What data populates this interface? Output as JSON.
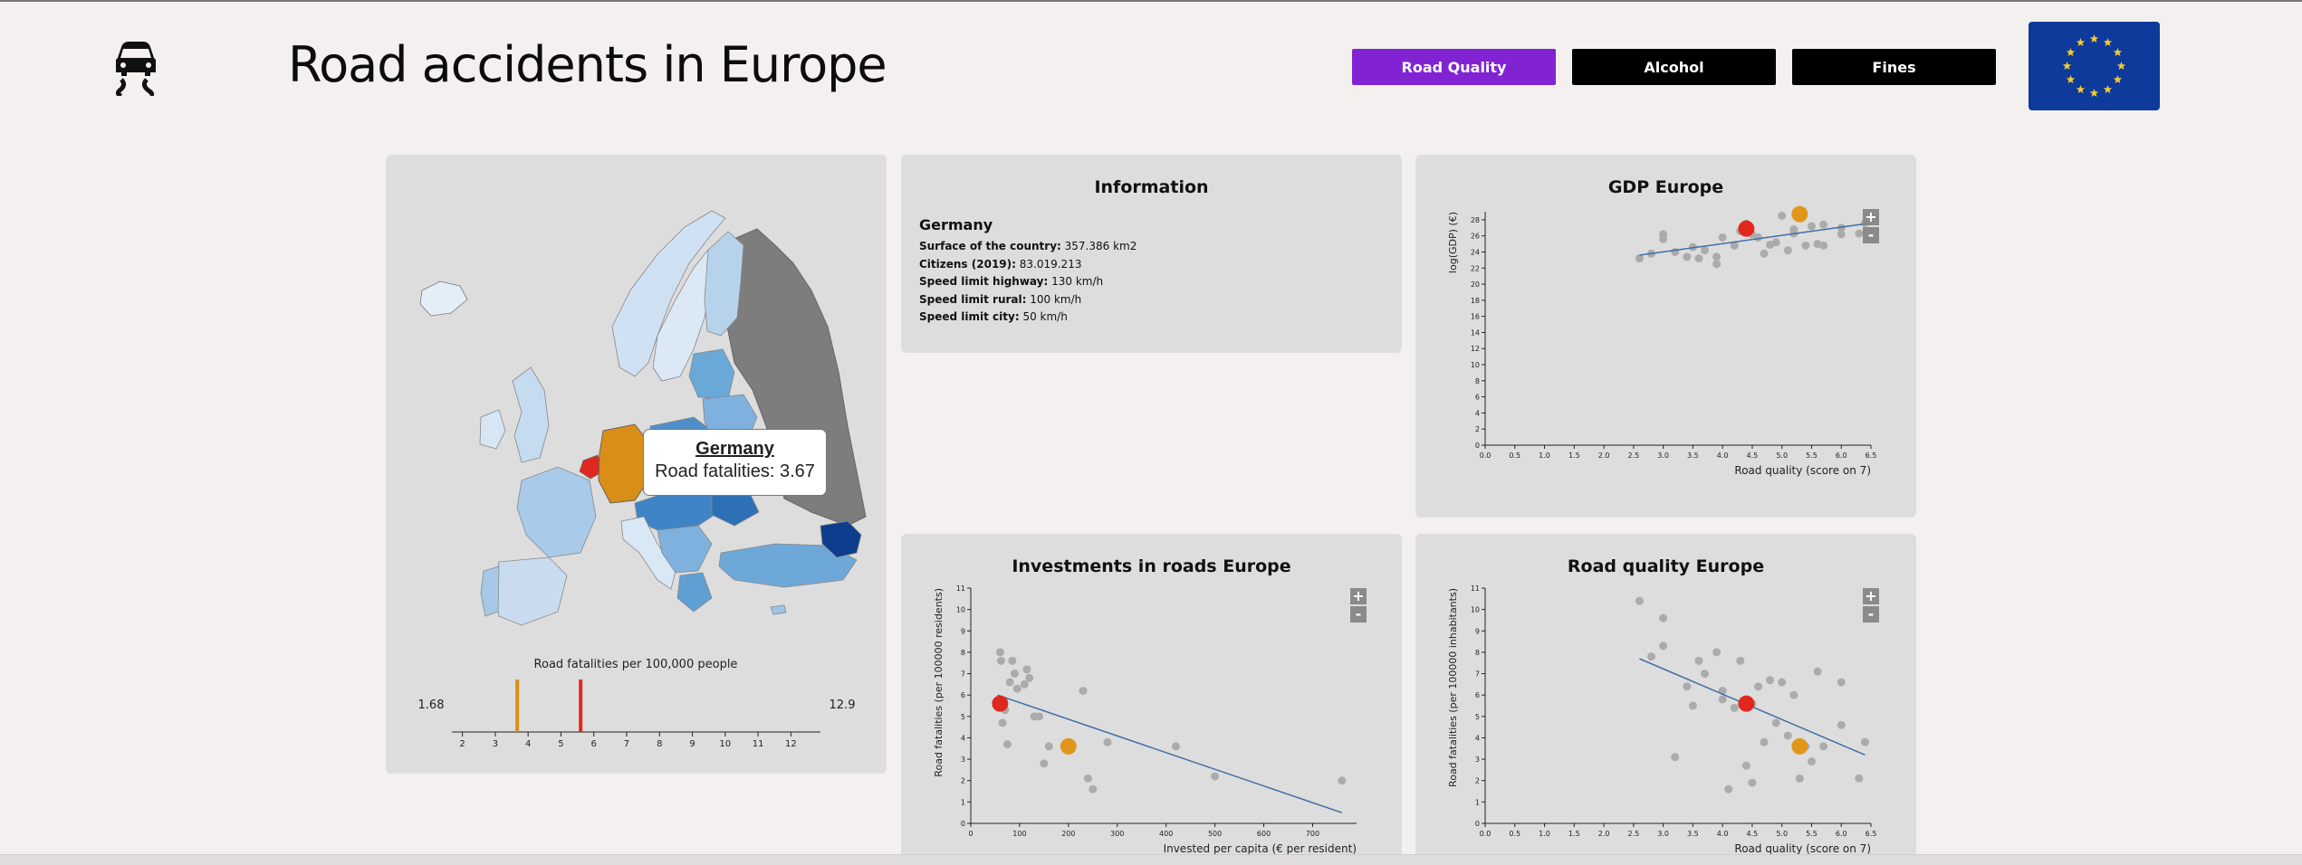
{
  "header": {
    "title": "Road accidents in Europe",
    "logo_icon": "car-skid-icon",
    "nav": [
      {
        "label": "Road Quality",
        "active": true
      },
      {
        "label": "Alcohol",
        "active": false
      },
      {
        "label": "Fines",
        "active": false
      }
    ],
    "flag_icon": "eu-flag-icon"
  },
  "map_panel": {
    "tooltip": {
      "country": "Germany",
      "text": "Road fatalities: 3.67"
    },
    "legend": {
      "title": "Road fatalities per 100,000 people",
      "min_label": "1.68",
      "max_label": "12.9",
      "ticks": [
        "2",
        "3",
        "4",
        "5",
        "6",
        "7",
        "8",
        "9",
        "10",
        "11",
        "12"
      ],
      "markers": [
        {
          "value": 3.67,
          "color": "#d98e17"
        },
        {
          "value": 5.6,
          "color": "#e0281e"
        }
      ]
    }
  },
  "info_panel": {
    "title": "Information",
    "country": "Germany",
    "rows": [
      {
        "label": "Surface of the country:",
        "value": "357.386 km2"
      },
      {
        "label": "Citizens (2019):",
        "value": "83.019.213"
      },
      {
        "label": "Speed limit highway:",
        "value": "130 km/h"
      },
      {
        "label": "Speed limit rural:",
        "value": "100 km/h"
      },
      {
        "label": "Speed limit city:",
        "value": "50 km/h"
      }
    ]
  },
  "zoom": {
    "plus": "+",
    "minus": "-"
  },
  "chart_data": [
    {
      "type": "scatter",
      "title": "GDP Europe",
      "xlabel": "Road quality (score on 7)",
      "ylabel": "log(GDP) (€)",
      "xlim": [
        0,
        6.5
      ],
      "ylim": [
        0,
        29
      ],
      "xticks": [
        "0.0",
        "0.5",
        "1.0",
        "1.5",
        "2.0",
        "2.5",
        "3.0",
        "3.5",
        "4.0",
        "4.5",
        "5.0",
        "5.5",
        "6.0",
        "6.5"
      ],
      "yticks": [
        "0",
        "2",
        "4",
        "6",
        "8",
        "10",
        "12",
        "14",
        "16",
        "18",
        "20",
        "22",
        "24",
        "26",
        "28"
      ],
      "points": [
        [
          2.6,
          23.2
        ],
        [
          2.8,
          23.8
        ],
        [
          3.0,
          25.6
        ],
        [
          3.0,
          26.2
        ],
        [
          3.2,
          24.0
        ],
        [
          3.4,
          23.4
        ],
        [
          3.5,
          24.6
        ],
        [
          3.6,
          23.2
        ],
        [
          3.7,
          24.2
        ],
        [
          3.9,
          22.5
        ],
        [
          3.9,
          23.4
        ],
        [
          4.0,
          25.8
        ],
        [
          4.2,
          24.8
        ],
        [
          4.3,
          26.6
        ],
        [
          4.4,
          27.5
        ],
        [
          4.5,
          26.2
        ],
        [
          4.6,
          25.8
        ],
        [
          4.7,
          23.8
        ],
        [
          4.8,
          24.9
        ],
        [
          4.9,
          25.2
        ],
        [
          5.0,
          28.5
        ],
        [
          5.1,
          24.2
        ],
        [
          5.2,
          26.3
        ],
        [
          5.2,
          26.8
        ],
        [
          5.4,
          24.8
        ],
        [
          5.5,
          27.2
        ],
        [
          5.6,
          25.0
        ],
        [
          5.7,
          27.4
        ],
        [
          5.7,
          24.8
        ],
        [
          6.0,
          26.2
        ],
        [
          6.0,
          27.0
        ],
        [
          6.3,
          26.3
        ],
        [
          6.4,
          27.6
        ]
      ],
      "highlights": [
        {
          "x": 4.4,
          "y": 26.9,
          "color": "#e0281e"
        },
        {
          "x": 5.3,
          "y": 28.7,
          "color": "#e0961a"
        }
      ],
      "trend": [
        [
          2.6,
          23.6
        ],
        [
          6.5,
          27.6
        ]
      ]
    },
    {
      "type": "scatter",
      "title": "Investments in roads Europe",
      "xlabel": "Invested per capita (€ per resident)",
      "ylabel": "Road fatalities (per 100000 residents)",
      "xlim": [
        0,
        790
      ],
      "ylim": [
        0,
        11
      ],
      "xticks": [
        "0",
        "100",
        "200",
        "300",
        "400",
        "500",
        "600",
        "700"
      ],
      "yticks": [
        "0",
        "1",
        "2",
        "3",
        "4",
        "5",
        "6",
        "7",
        "8",
        "9",
        "10",
        "11"
      ],
      "points": [
        [
          60,
          8.0
        ],
        [
          62,
          7.6
        ],
        [
          65,
          4.7
        ],
        [
          70,
          5.3
        ],
        [
          75,
          3.7
        ],
        [
          80,
          6.6
        ],
        [
          85,
          7.6
        ],
        [
          90,
          7.0
        ],
        [
          95,
          6.3
        ],
        [
          110,
          6.5
        ],
        [
          115,
          7.2
        ],
        [
          120,
          6.8
        ],
        [
          130,
          5.0
        ],
        [
          140,
          5.0
        ],
        [
          150,
          2.8
        ],
        [
          160,
          3.6
        ],
        [
          200,
          3.8
        ],
        [
          230,
          6.2
        ],
        [
          240,
          2.1
        ],
        [
          250,
          1.6
        ],
        [
          280,
          3.8
        ],
        [
          420,
          3.6
        ],
        [
          500,
          2.2
        ],
        [
          760,
          2.0
        ]
      ],
      "highlights": [
        {
          "x": 60,
          "y": 5.6,
          "color": "#e0281e"
        },
        {
          "x": 200,
          "y": 3.6,
          "color": "#e0961a"
        }
      ],
      "trend": [
        [
          55,
          6.0
        ],
        [
          760,
          0.5
        ]
      ]
    },
    {
      "type": "scatter",
      "title": "Road quality Europe",
      "xlabel": "Road quality (score on 7)",
      "ylabel": "Road fatalities (per 100000 inhabitants)",
      "xlim": [
        0,
        6.5
      ],
      "ylim": [
        0,
        11
      ],
      "xticks": [
        "0.0",
        "0.5",
        "1.0",
        "1.5",
        "2.0",
        "2.5",
        "3.0",
        "3.5",
        "4.0",
        "4.5",
        "5.0",
        "5.5",
        "6.0",
        "6.5"
      ],
      "yticks": [
        "0",
        "1",
        "2",
        "3",
        "4",
        "5",
        "6",
        "7",
        "8",
        "9",
        "10",
        "11"
      ],
      "points": [
        [
          2.6,
          10.4
        ],
        [
          2.8,
          7.8
        ],
        [
          3.0,
          8.3
        ],
        [
          3.0,
          9.6
        ],
        [
          3.2,
          3.1
        ],
        [
          3.4,
          6.4
        ],
        [
          3.5,
          5.5
        ],
        [
          3.6,
          7.6
        ],
        [
          3.7,
          7.0
        ],
        [
          3.9,
          8.0
        ],
        [
          4.0,
          5.8
        ],
        [
          4.0,
          6.2
        ],
        [
          4.1,
          1.6
        ],
        [
          4.2,
          5.4
        ],
        [
          4.3,
          7.6
        ],
        [
          4.4,
          2.7
        ],
        [
          4.5,
          5.6
        ],
        [
          4.5,
          1.9
        ],
        [
          4.6,
          6.4
        ],
        [
          4.7,
          3.8
        ],
        [
          4.8,
          6.7
        ],
        [
          4.9,
          4.7
        ],
        [
          5.0,
          6.6
        ],
        [
          5.1,
          4.1
        ],
        [
          5.2,
          6.0
        ],
        [
          5.3,
          2.1
        ],
        [
          5.4,
          3.6
        ],
        [
          5.5,
          2.9
        ],
        [
          5.6,
          7.1
        ],
        [
          5.7,
          3.6
        ],
        [
          6.0,
          6.6
        ],
        [
          6.0,
          4.6
        ],
        [
          6.3,
          2.1
        ],
        [
          6.4,
          3.8
        ]
      ],
      "highlights": [
        {
          "x": 4.4,
          "y": 5.6,
          "color": "#e0281e"
        },
        {
          "x": 5.3,
          "y": 3.6,
          "color": "#e0961a"
        }
      ],
      "trend": [
        [
          2.6,
          7.7
        ],
        [
          6.4,
          3.2
        ]
      ]
    }
  ]
}
